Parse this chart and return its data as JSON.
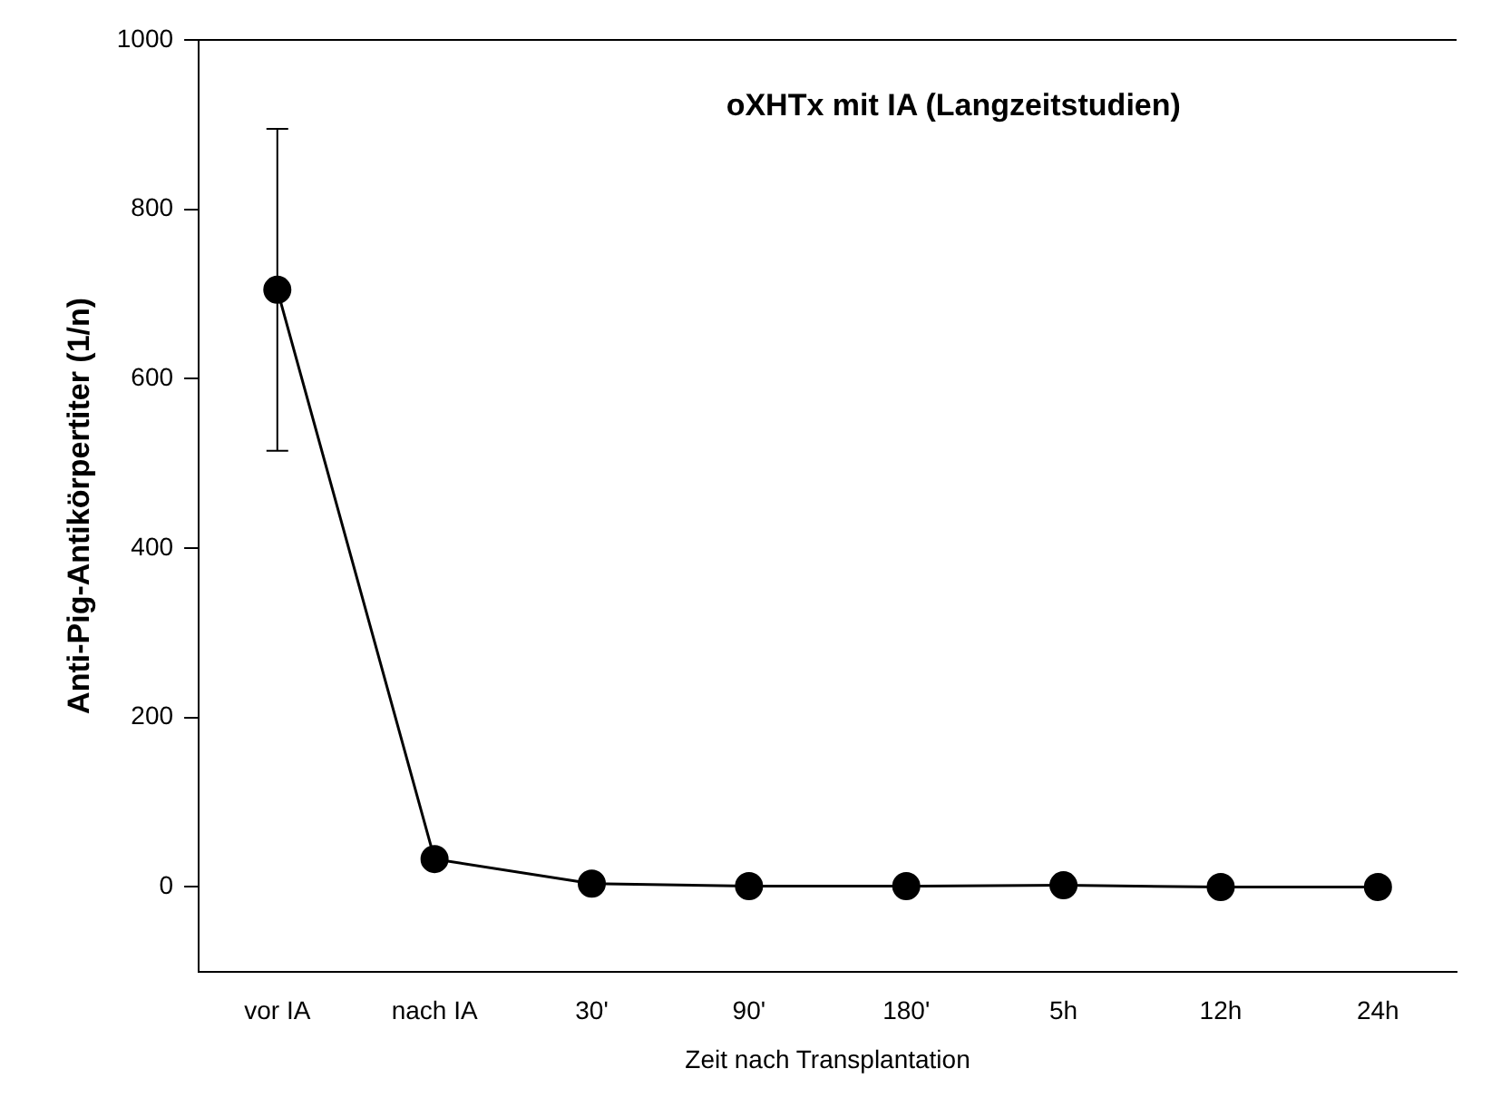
{
  "chart_data": {
    "type": "line",
    "title": "oXHTx mit IA (Langzeitstudien)",
    "xlabel": "Zeit nach Transplantation",
    "ylabel": "Anti-Pig-Antikörpertiter (1/n)",
    "categories": [
      "vor IA",
      "nach IA",
      "30'",
      "90'",
      "180'",
      "5h",
      "12h",
      "24h"
    ],
    "series": [
      {
        "color": "#000000",
        "values": [
          705,
          33,
          4,
          1,
          1,
          2,
          0,
          0
        ],
        "errors": [
          190,
          null,
          null,
          null,
          null,
          null,
          null,
          null
        ]
      }
    ],
    "ylim": [
      -100,
      1000
    ],
    "yticks": [
      0,
      200,
      400,
      600,
      800,
      1000
    ],
    "grid": false,
    "legend": false,
    "marker": "circle",
    "line_style": "solid"
  }
}
